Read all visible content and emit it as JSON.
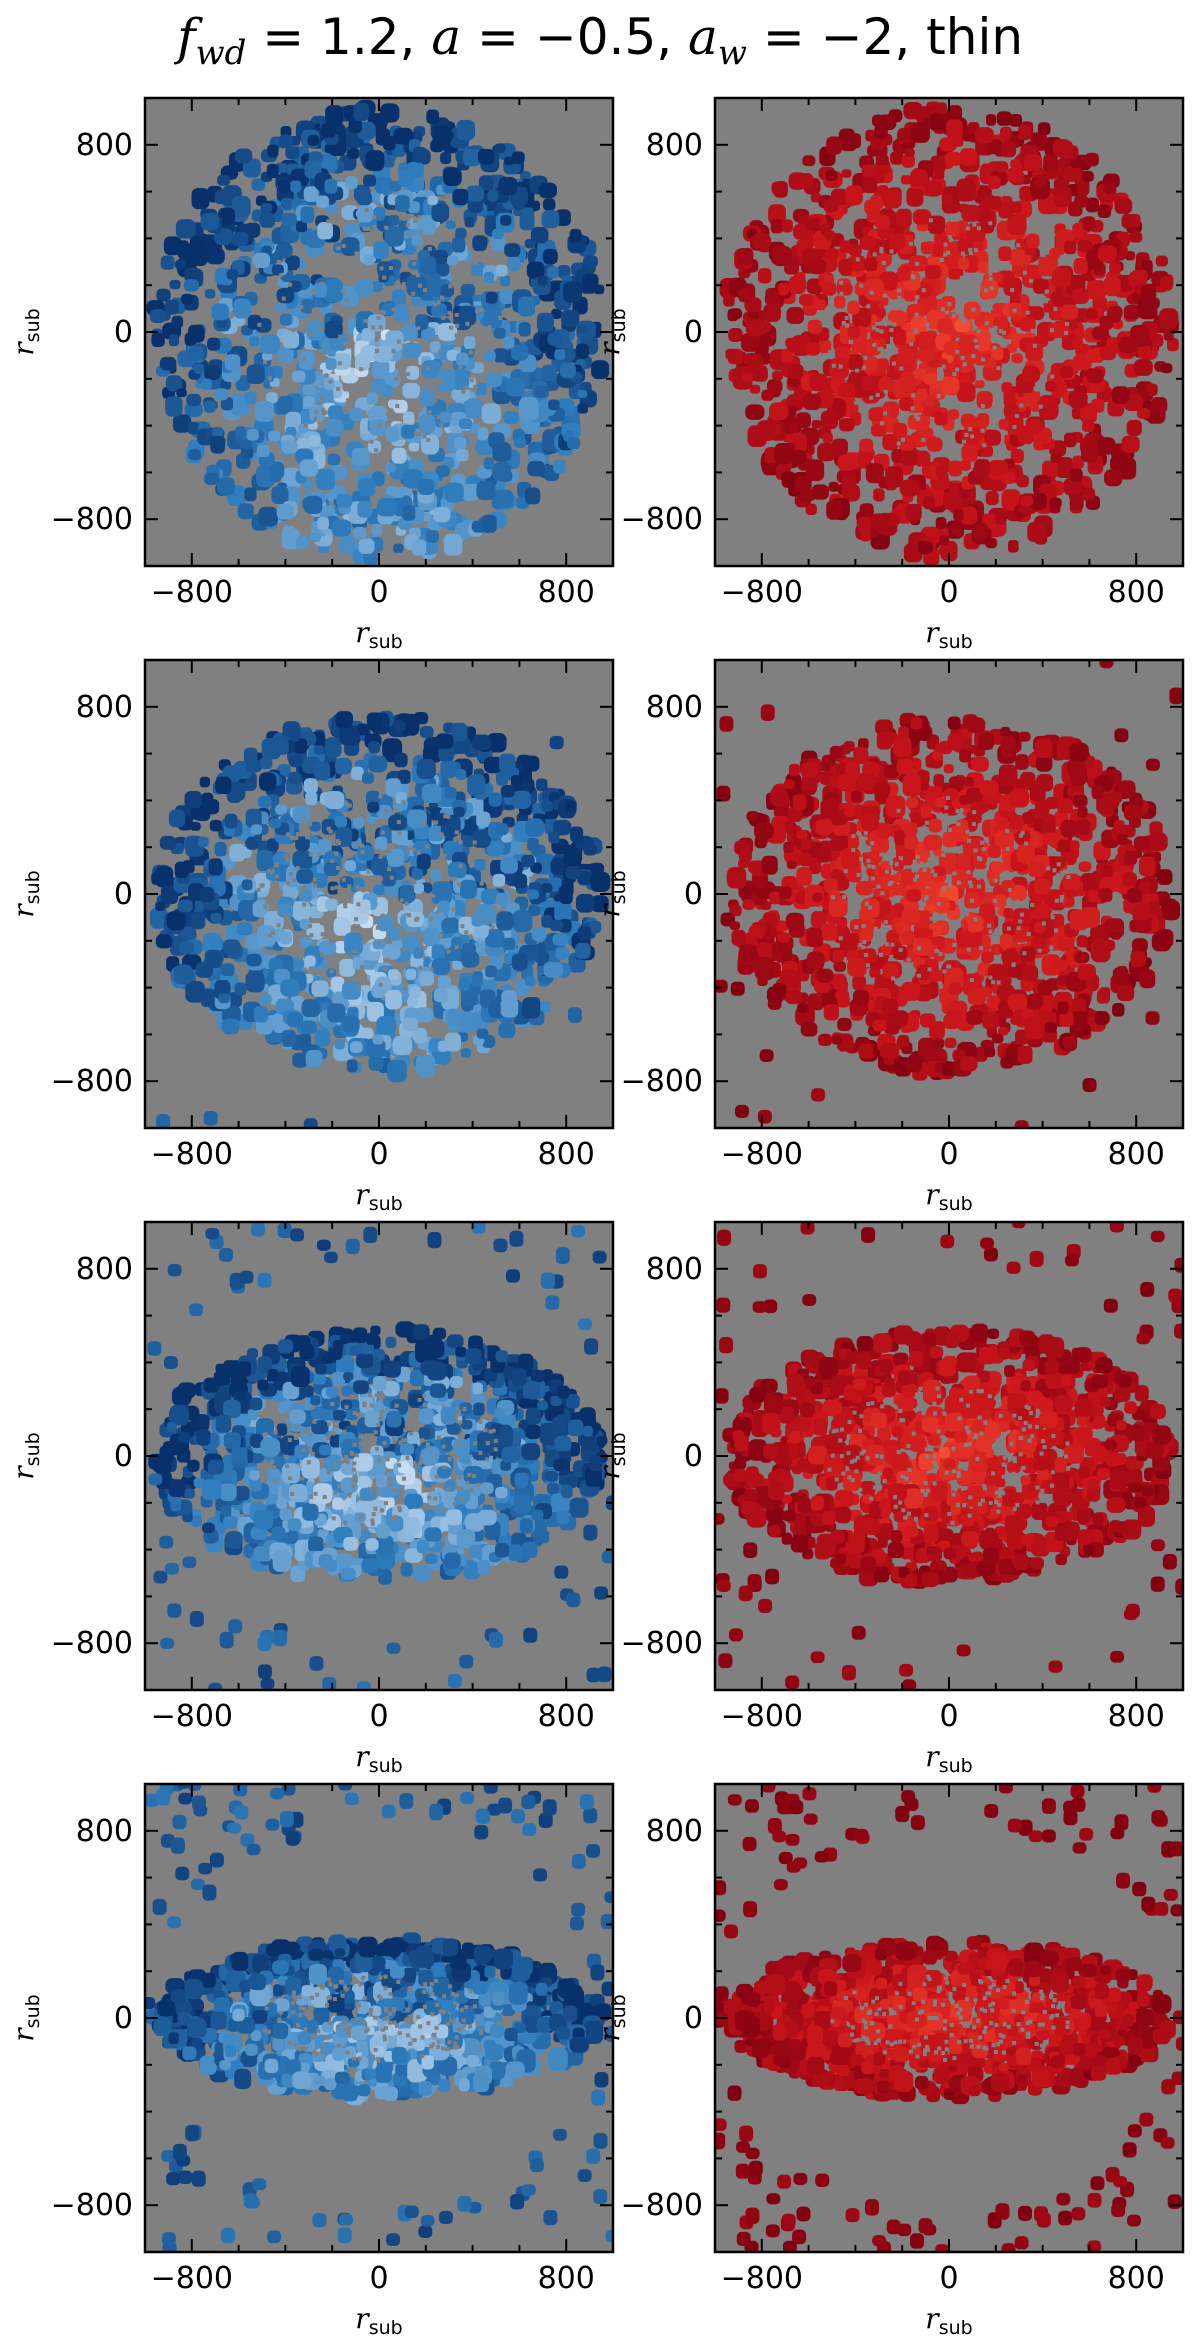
{
  "figure": {
    "title_parts": {
      "f": "f",
      "f_sub": "wd",
      "eq1": " = 1.2, ",
      "a": "a",
      "eq2": " = −0.5, ",
      "a2": "a",
      "a2_sub": "w",
      "eq3": " = −2, thin"
    }
  },
  "colors": {
    "background": "#808080",
    "blue_dark": "#08306b",
    "blue_mid": "#2f7dbd",
    "blue_light": "#c6dbef",
    "blue_white": "#ffffff",
    "red_dark": "#7f0010",
    "red_mid": "#c8141b",
    "red_bright": "#e8392a",
    "red_orange": "#fc7a46"
  },
  "chart_data": [
    {
      "type": "heatmap",
      "row": 1,
      "column": "left",
      "colormap": "Blues",
      "xlabel": "r",
      "xlabel_sub": "sub",
      "ylabel": "r",
      "ylabel_sub": "sub",
      "xlim": [
        -1000,
        1000
      ],
      "ylim": [
        -1000,
        1000
      ],
      "xticks": [
        -800,
        0,
        800
      ],
      "yticks": [
        -800,
        0,
        800
      ],
      "xtick_labels": [
        "−800",
        "0",
        "800"
      ],
      "ytick_labels": [
        "−800",
        "0",
        "800"
      ],
      "shape": {
        "rx": 960,
        "ry": 960,
        "halo": 0.0
      }
    },
    {
      "type": "heatmap",
      "row": 1,
      "column": "right",
      "colormap": "Reds",
      "xlabel": "r",
      "xlabel_sub": "sub",
      "ylabel": "r",
      "ylabel_sub": "sub",
      "xlim": [
        -1000,
        1000
      ],
      "ylim": [
        -1000,
        1000
      ],
      "xticks": [
        -800,
        0,
        800
      ],
      "yticks": [
        -800,
        0,
        800
      ],
      "xtick_labels": [
        "−800",
        "0",
        "800"
      ],
      "ytick_labels": [
        "−800",
        "0",
        "800"
      ],
      "shape": {
        "rx": 960,
        "ry": 960,
        "halo": 0.0
      }
    },
    {
      "type": "heatmap",
      "row": 2,
      "column": "left",
      "colormap": "Blues",
      "xlabel": "r",
      "xlabel_sub": "sub",
      "ylabel": "r",
      "ylabel_sub": "sub",
      "xlim": [
        -1000,
        1000
      ],
      "ylim": [
        -1000,
        1000
      ],
      "xticks": [
        -800,
        0,
        800
      ],
      "yticks": [
        -800,
        0,
        800
      ],
      "xtick_labels": [
        "−800",
        "0",
        "800"
      ],
      "ytick_labels": [
        "−800",
        "0",
        "800"
      ],
      "shape": {
        "rx": 960,
        "ry": 760,
        "halo": 0.06
      }
    },
    {
      "type": "heatmap",
      "row": 2,
      "column": "right",
      "colormap": "Reds",
      "xlabel": "r",
      "xlabel_sub": "sub",
      "ylabel": "r",
      "ylabel_sub": "sub",
      "xlim": [
        -1000,
        1000
      ],
      "ylim": [
        -1000,
        1000
      ],
      "xticks": [
        -800,
        0,
        800
      ],
      "yticks": [
        -800,
        0,
        800
      ],
      "xtick_labels": [
        "−800",
        "0",
        "800"
      ],
      "ytick_labels": [
        "−800",
        "0",
        "800"
      ],
      "shape": {
        "rx": 960,
        "ry": 760,
        "halo": 0.06
      }
    },
    {
      "type": "heatmap",
      "row": 3,
      "column": "left",
      "colormap": "Blues",
      "xlabel": "r",
      "xlabel_sub": "sub",
      "ylabel": "r",
      "ylabel_sub": "sub",
      "xlim": [
        -1000,
        1000
      ],
      "ylim": [
        -1000,
        1000
      ],
      "xticks": [
        -800,
        0,
        800
      ],
      "yticks": [
        -800,
        0,
        800
      ],
      "xtick_labels": [
        "−800",
        "0",
        "800"
      ],
      "ytick_labels": [
        "−800",
        "0",
        "800"
      ],
      "shape": {
        "rx": 960,
        "ry": 540,
        "halo": 0.12
      }
    },
    {
      "type": "heatmap",
      "row": 3,
      "column": "right",
      "colormap": "Reds",
      "xlabel": "r",
      "xlabel_sub": "sub",
      "ylabel": "r",
      "ylabel_sub": "sub",
      "xlim": [
        -1000,
        1000
      ],
      "ylim": [
        -1000,
        1000
      ],
      "xticks": [
        -800,
        0,
        800
      ],
      "yticks": [
        -800,
        0,
        800
      ],
      "xtick_labels": [
        "−800",
        "0",
        "800"
      ],
      "ytick_labels": [
        "−800",
        "0",
        "800"
      ],
      "shape": {
        "rx": 960,
        "ry": 540,
        "halo": 0.12
      }
    },
    {
      "type": "heatmap",
      "row": 4,
      "column": "left",
      "colormap": "Blues",
      "xlabel": "r",
      "xlabel_sub": "sub",
      "ylabel": "r",
      "ylabel_sub": "sub",
      "xlim": [
        -1000,
        1000
      ],
      "ylim": [
        -1000,
        1000
      ],
      "xticks": [
        -800,
        0,
        800
      ],
      "yticks": [
        -800,
        0,
        800
      ],
      "xtick_labels": [
        "−800",
        "0",
        "800"
      ],
      "ytick_labels": [
        "−800",
        "0",
        "800"
      ],
      "shape": {
        "rx": 960,
        "ry": 330,
        "halo": 0.2
      }
    },
    {
      "type": "heatmap",
      "row": 4,
      "column": "right",
      "colormap": "Reds",
      "xlabel": "r",
      "xlabel_sub": "sub",
      "ylabel": "r",
      "ylabel_sub": "sub",
      "xlim": [
        -1000,
        1000
      ],
      "ylim": [
        -1000,
        1000
      ],
      "xticks": [
        -800,
        0,
        800
      ],
      "yticks": [
        -800,
        0,
        800
      ],
      "xtick_labels": [
        "−800",
        "0",
        "800"
      ],
      "ytick_labels": [
        "−800",
        "0",
        "800"
      ],
      "shape": {
        "rx": 960,
        "ry": 330,
        "halo": 0.2
      }
    }
  ]
}
